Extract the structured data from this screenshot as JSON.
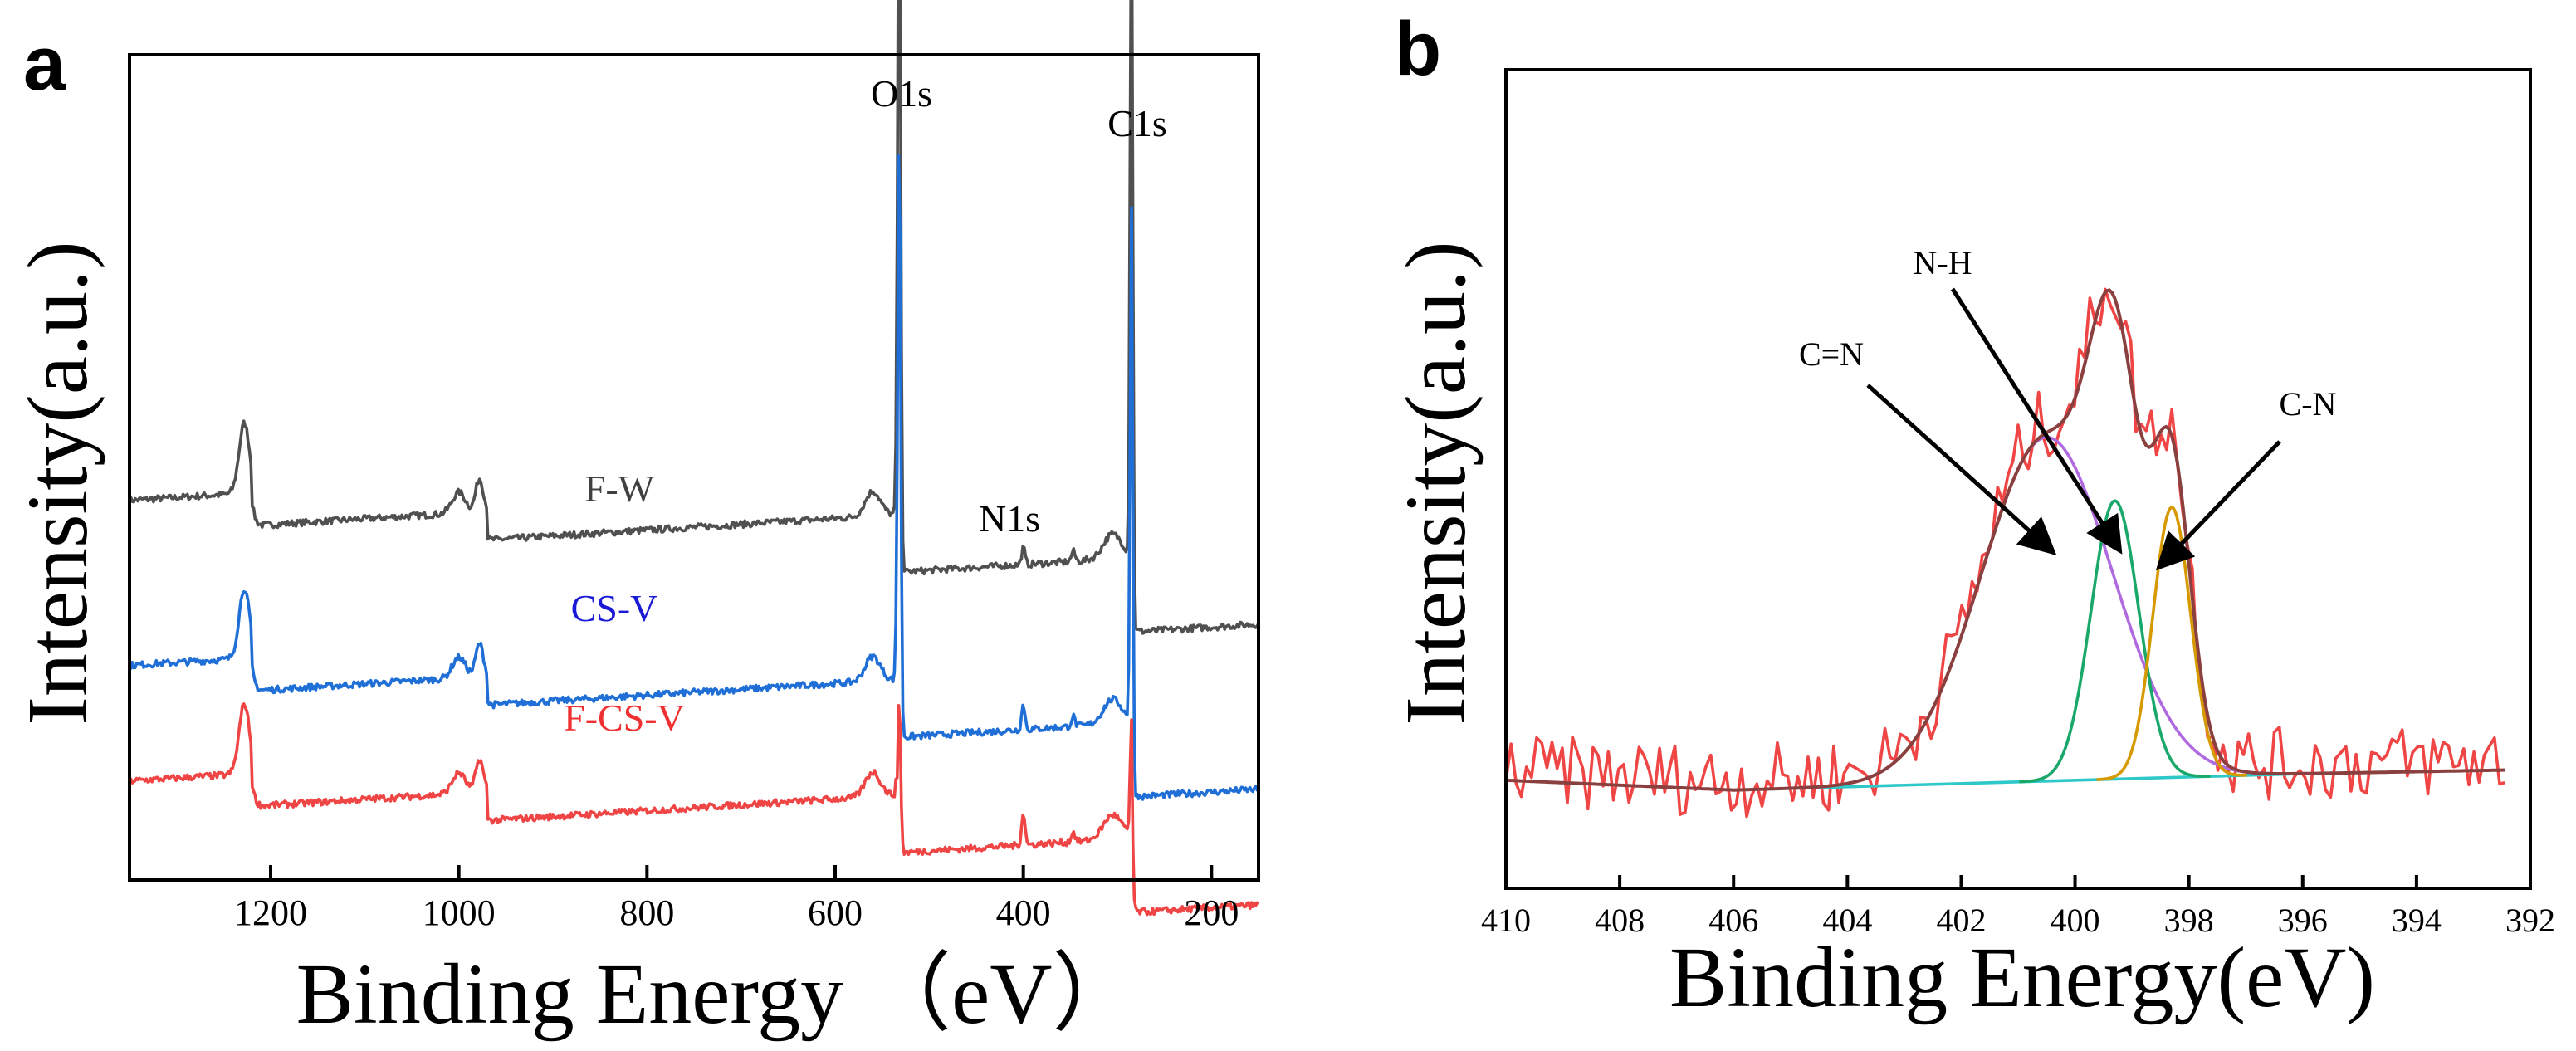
{
  "chart_data": [
    {
      "panel_label": "a",
      "type": "line",
      "title": "",
      "xlabel": "Binding Energy （eV）",
      "ylabel": "Intensity(a.u.)",
      "xlim": [
        1350,
        150
      ],
      "ylim": [
        0,
        1
      ],
      "x_reversed": true,
      "x_ticks": [
        1200,
        1000,
        800,
        600,
        400,
        200
      ],
      "y_ticks_shown": false,
      "grid": false,
      "annotations": [
        {
          "text": "O1s",
          "x": 530
        },
        {
          "text": "C1s",
          "x": 284.6
        },
        {
          "text": "N1s",
          "x": 400
        }
      ],
      "legend": "inline labels",
      "series": [
        {
          "name": "F-W",
          "color": "#505050",
          "offset": 0.46,
          "o1s_peak": 0.92,
          "c1s_peak": 0.85,
          "n1s_peak": 0.02
        },
        {
          "name": "CS-V",
          "color": "#1f6fd6",
          "offset": 0.26,
          "o1s_peak": 0.74,
          "c1s_peak": 0.62,
          "n1s_peak": 0.03
        },
        {
          "name": "F-CS-V",
          "color": "#f04545",
          "offset": 0.12,
          "o1s_peak": 0.19,
          "c1s_peak": 0.14,
          "n1s_peak": 0.04
        }
      ]
    },
    {
      "panel_label": "b",
      "type": "line",
      "title": "",
      "xlabel": "Binding Energy(eV)",
      "ylabel": "Intensity(a.u.)",
      "xlim": [
        410,
        392
      ],
      "ylim": [
        0,
        1
      ],
      "x_reversed": true,
      "x_ticks": [
        410,
        408,
        406,
        404,
        402,
        400,
        398,
        396,
        394,
        392
      ],
      "y_ticks_shown": false,
      "grid": false,
      "baseline": {
        "x": [
          406,
          396
        ],
        "y": [
          0.12,
          0.14
        ]
      },
      "components": [
        {
          "name": "C=N",
          "center": 400.5,
          "amplitude": 0.42,
          "sigma": 1.15,
          "color": "#b06ae0"
        },
        {
          "name": "N-H",
          "center": 399.3,
          "amplitude": 0.34,
          "sigma": 0.42,
          "color": "#1aa86a"
        },
        {
          "name": "C-N",
          "center": 398.3,
          "amplitude": 0.33,
          "sigma": 0.33,
          "color": "#d69a00"
        }
      ],
      "fit_color": "#8b4040",
      "raw_color": "#f04545",
      "baseline_color": "#2ec8c8",
      "annotations": [
        {
          "text": "N-H",
          "arrow_to_x": 399.3
        },
        {
          "text": "C=N",
          "arrow_to_x": 400.5
        },
        {
          "text": "C-N",
          "arrow_to_x": 398.3
        }
      ]
    }
  ]
}
